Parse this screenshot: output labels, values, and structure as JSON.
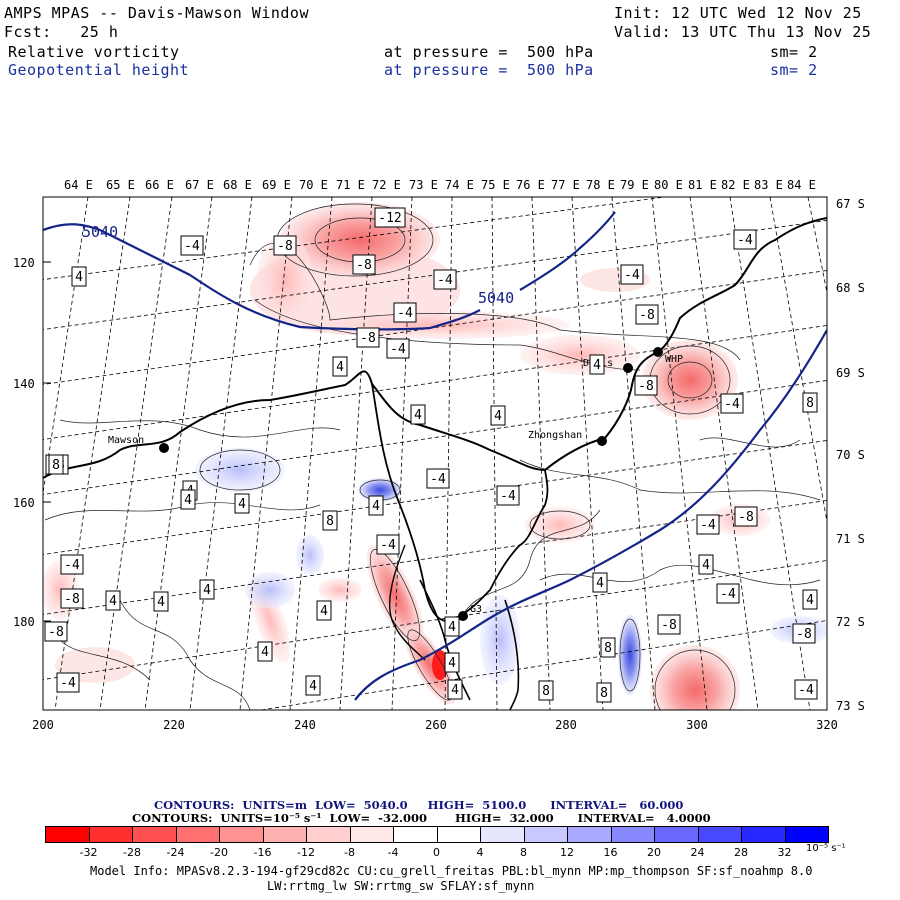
{
  "header": {
    "title": "AMPS MPAS -- Davis-Mawson Window",
    "init": "Init: 12 UTC Wed 12 Nov 25",
    "fcst": "Fcst:   25 h",
    "valid": "Valid: 13 UTC Thu 13 Nov 25",
    "field1": {
      "name": "Relative vorticity",
      "level": "at pressure =  500 hPa",
      "sm": "sm= 2"
    },
    "field2": {
      "name": "Geopotential height",
      "level": "at pressure =  500 hPa",
      "sm": "sm= 2"
    }
  },
  "axes": {
    "top_longitudes": [
      "64 E",
      "65 E",
      "66 E",
      "67 E",
      "68 E",
      "69 E",
      "70 E",
      "71 E",
      "72 E",
      "73 E",
      "74 E",
      "75 E",
      "76 E",
      "77 E",
      "78 E",
      "79 E",
      "80 E",
      "81 E",
      "82 E",
      "83 E",
      "84 E"
    ],
    "right_latitudes": [
      "67 S",
      "68 S",
      "69 S",
      "70 S",
      "71 S",
      "72 S",
      "73 S"
    ],
    "left_y": [
      "120",
      "140",
      "160",
      "180"
    ],
    "bottom_x": [
      "200",
      "220",
      "240",
      "260",
      "280",
      "300",
      "320"
    ]
  },
  "stations": [
    "Mawson",
    "Zhongshan",
    "Davis",
    "WHP",
    "G3"
  ],
  "height_labels": [
    "5040",
    "5040"
  ],
  "vorticity_labels": [
    "-12",
    "-4",
    "-8",
    "-8",
    "-4",
    "4",
    "-4",
    "-4",
    "-8",
    "-4",
    "4",
    "-8",
    "-4",
    "4",
    "4",
    "4",
    "-8",
    "-4",
    "-4",
    "4",
    "4",
    "8",
    "-4",
    "-4",
    "8",
    "4",
    "-8",
    "-4",
    "4",
    "-4",
    "-8",
    "4",
    "4",
    "4",
    "-8",
    "4",
    "8",
    "4",
    "-4",
    "4",
    "-8",
    "-8",
    "4",
    "8",
    "4",
    "-8",
    "4",
    "-4",
    "8",
    "4",
    "8",
    "4",
    "-4",
    "4"
  ],
  "colorbar": {
    "line1": "CONTOURS:  UNITS=m  LOW=  5040.0     HIGH=  5100.0      INTERVAL=   60.000",
    "line2": "CONTOURS:  UNITS=10⁻⁵ s⁻¹  LOW=  -32.000       HIGH=  32.000      INTERVAL=   4.0000",
    "ticks": [
      "-32",
      "-28",
      "-24",
      "-20",
      "-16",
      "-12",
      "-8",
      "-4",
      "0",
      "4",
      "8",
      "12",
      "16",
      "20",
      "24",
      "28",
      "32"
    ],
    "unit": "10⁻⁵ s⁻¹",
    "colors": [
      "#ff0000",
      "#ff2f2f",
      "#ff5151",
      "#ff7171",
      "#ff9191",
      "#ffb1b1",
      "#ffcece",
      "#ffe8e8",
      "#ffffff",
      "#ffffff",
      "#e6e6ff",
      "#c8c8ff",
      "#a9a9ff",
      "#8888ff",
      "#6868ff",
      "#4848ff",
      "#2727ff",
      "#0000ff"
    ]
  },
  "footer": {
    "line1": "Model Info: MPASv8.2.3-194-gf29cd82c CU:cu_grell_freitas PBL:bl_mynn MP:mp_thompson SF:sf_noahmp 8.0",
    "line2": "LW:rrtmg_lw SW:rrtmg_sw SFLAY:sf_mynn"
  }
}
